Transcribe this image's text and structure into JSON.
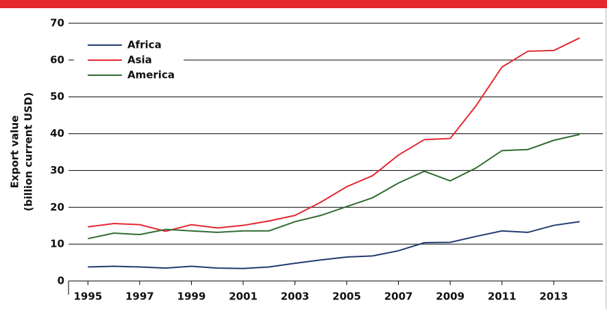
{
  "chart_data": {
    "type": "line",
    "ylabel": [
      "Export value",
      "(billion current USD)"
    ],
    "x": [
      1995,
      1996,
      1997,
      1998,
      1999,
      2000,
      2001,
      2002,
      2003,
      2004,
      2005,
      2006,
      2007,
      2008,
      2009,
      2010,
      2011,
      2012,
      2013,
      2014
    ],
    "series": [
      {
        "name": "Africa",
        "color": "#1f3a6e",
        "values": [
          3.8,
          4.0,
          3.8,
          3.5,
          4.0,
          3.5,
          3.4,
          3.8,
          4.8,
          5.7,
          6.5,
          6.8,
          8.2,
          10.4,
          10.5,
          12.1,
          13.6,
          13.2,
          15.1,
          16.1
        ]
      },
      {
        "name": "Asia",
        "color": "#e3262f",
        "values": [
          14.7,
          15.6,
          15.3,
          13.5,
          15.3,
          14.4,
          15.1,
          16.3,
          17.8,
          21.4,
          25.6,
          28.6,
          34.2,
          38.4,
          38.7,
          47.6,
          58.1,
          62.4,
          62.6,
          66.0
        ]
      },
      {
        "name": "America",
        "color": "#2e6b30",
        "values": [
          11.5,
          13.0,
          12.6,
          14.0,
          13.6,
          13.2,
          13.6,
          13.6,
          16.1,
          17.8,
          20.2,
          22.6,
          26.6,
          29.8,
          27.2,
          30.7,
          35.4,
          35.7,
          38.2,
          39.8
        ]
      }
    ],
    "xlim": [
      1994.25,
      2014.9
    ],
    "xticks": [
      1995,
      1997,
      1999,
      2001,
      2003,
      2005,
      2007,
      2009,
      2011,
      2013
    ],
    "ylim": [
      0,
      70
    ],
    "yticks": [
      0,
      10,
      20,
      30,
      40,
      50,
      60,
      70
    ],
    "grid": true,
    "legend": "upper left"
  }
}
